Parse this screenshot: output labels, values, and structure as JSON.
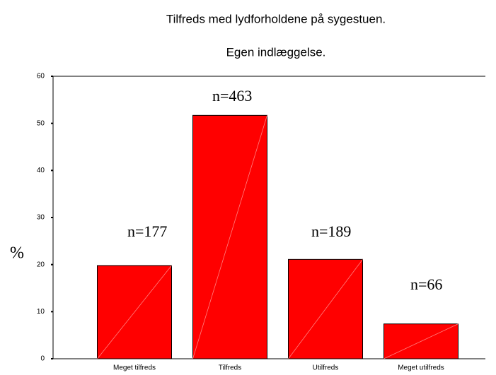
{
  "chart_data": {
    "type": "bar",
    "title": "Tilfreds med lydforholdene på sygestuen.",
    "subtitle": "Egen indlæggelse.",
    "y_label": "%",
    "categories": [
      "Meget tilfreds",
      "Tilfreds",
      "Utilfreds",
      "Meget utilfreds"
    ],
    "values": [
      19.8,
      51.7,
      21.1,
      7.4
    ],
    "annotations": [
      "n=177",
      "n=463",
      "n=189",
      "n=66"
    ],
    "color": "#ff0000",
    "ylim": [
      0,
      60
    ],
    "yticks": [
      0,
      10,
      20,
      30,
      40,
      50,
      60
    ]
  }
}
